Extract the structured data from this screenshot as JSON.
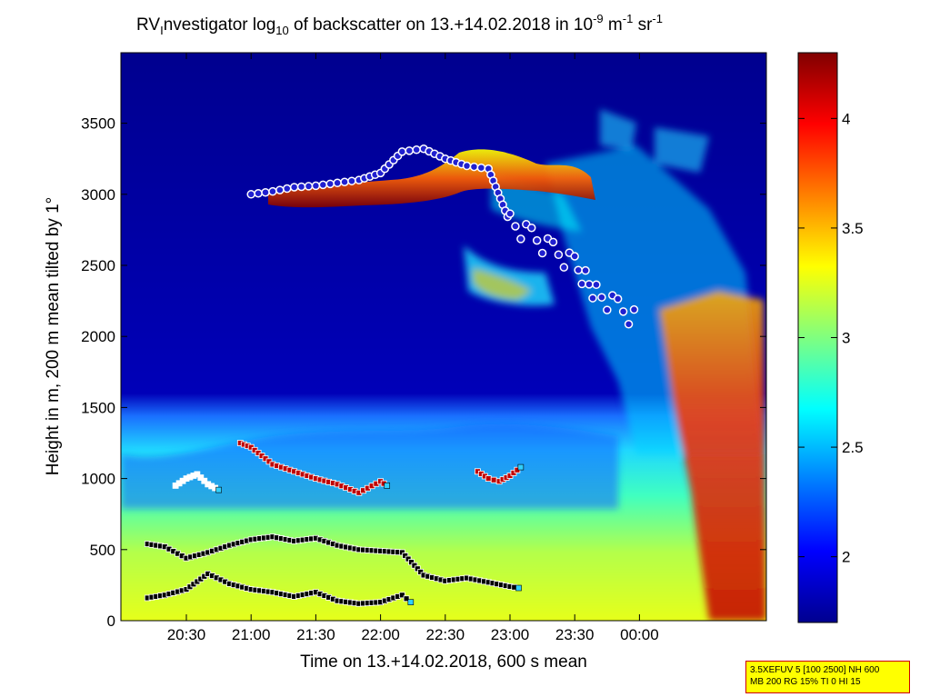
{
  "chart_data": {
    "type": "heatmap",
    "title": {
      "prefix": "RV",
      "sub1": "I",
      "mid": "nvestigator log",
      "sub2": "10",
      "tail": " of backscatter on 13.+14.02.2018 in 10",
      "sup1": "-9",
      "unit1": " m",
      "sup2": "-1",
      "unit2": " sr",
      "sup3": "-1"
    },
    "xlabel": "Time on 13.+14.02.2018, 600 s mean",
    "ylabel": "Height in m, 200 m mean tilted by 1°",
    "x_ticks": [
      "20:30",
      "21:00",
      "21:30",
      "22:00",
      "22:30",
      "23:00",
      "23:30",
      "00:00"
    ],
    "y_ticks": [
      "0",
      "500",
      "1000",
      "1500",
      "2000",
      "2500",
      "3000",
      "3500"
    ],
    "ylim": [
      0,
      4000
    ],
    "colorbar": {
      "ticks": [
        "2",
        "2.5",
        "3",
        "3.5",
        "4"
      ],
      "range": [
        1.7,
        4.3
      ],
      "colors": [
        "#00008f",
        "#0000ff",
        "#00ffff",
        "#ffff00",
        "#ff0000",
        "#800000"
      ]
    },
    "series": [
      {
        "marker": "black-square",
        "x": [
          "20:12",
          "20:20",
          "20:30",
          "20:40",
          "20:50",
          "21:00",
          "21:10",
          "21:20",
          "21:30",
          "21:40",
          "21:50",
          "22:00",
          "22:10",
          "22:20",
          "22:30",
          "22:40",
          "22:50",
          "23:00",
          "23:04"
        ],
        "y": [
          540,
          520,
          440,
          480,
          530,
          570,
          590,
          560,
          580,
          530,
          500,
          490,
          480,
          320,
          280,
          300,
          270,
          240,
          230
        ]
      },
      {
        "marker": "black-square",
        "x": [
          "20:12",
          "20:20",
          "20:30",
          "20:40",
          "20:50",
          "21:00",
          "21:10",
          "21:20",
          "21:30",
          "21:40",
          "21:50",
          "22:00",
          "22:10",
          "22:14"
        ],
        "y": [
          160,
          180,
          220,
          330,
          260,
          220,
          200,
          170,
          200,
          140,
          120,
          130,
          180,
          130
        ]
      },
      {
        "marker": "red-square",
        "x": [
          "20:55",
          "21:00",
          "21:10",
          "21:20",
          "21:30",
          "21:40",
          "21:50",
          "22:00",
          "22:03"
        ],
        "y": [
          1250,
          1220,
          1100,
          1050,
          1000,
          960,
          900,
          980,
          950
        ]
      },
      {
        "marker": "white-square",
        "x": [
          "20:25",
          "20:30",
          "20:35",
          "20:40",
          "20:45"
        ],
        "y": [
          950,
          1000,
          1030,
          960,
          920
        ]
      },
      {
        "marker": "red-square",
        "x": [
          "22:45",
          "22:50",
          "22:55",
          "23:00",
          "23:05"
        ],
        "y": [
          1050,
          1000,
          980,
          1020,
          1080
        ]
      }
    ],
    "cloud_base_points": {
      "x": [
        "21:00",
        "21:10",
        "21:20",
        "21:30",
        "21:40",
        "21:50",
        "22:00",
        "22:10",
        "22:20",
        "22:30",
        "22:40",
        "22:50",
        "23:00",
        "23:10",
        "23:20",
        "23:30",
        "23:40",
        "23:50",
        "00:00"
      ],
      "y": [
        3000,
        3020,
        3050,
        3060,
        3080,
        3100,
        3150,
        3300,
        3320,
        3250,
        3200,
        3180,
        2800,
        2700,
        2600,
        2500,
        2300,
        2200,
        2100
      ]
    }
  },
  "info_box": {
    "line1": "3.5XEFUV 5 [100 2500] NH 600",
    "line2": "MB 200 RG 15% TI 0 HI 15"
  }
}
